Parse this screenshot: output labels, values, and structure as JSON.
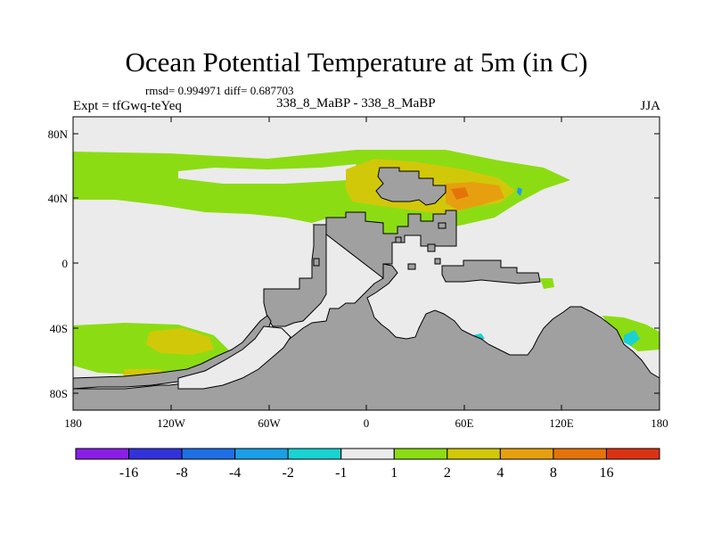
{
  "title": "Ocean Potential Temperature at 5m (in C)",
  "stats": "rmsd= 0.994971 diff= 0.687703",
  "experiment": "Expt = tfGwq-teYeq",
  "period_label": "338_8_MaBP - 338_8_MaBP",
  "season": "JJA",
  "y_ticks": [
    "80N",
    "40N",
    "0",
    "40S",
    "80S"
  ],
  "x_ticks": [
    "180",
    "120W",
    "60W",
    "0",
    "60E",
    "120E",
    "180"
  ],
  "colorbar": {
    "labels": [
      "-16",
      "-8",
      "-4",
      "-2",
      "-1",
      "1",
      "2",
      "4",
      "8",
      "16"
    ],
    "colors": [
      "#8a1ee6",
      "#3232dc",
      "#1e6ee6",
      "#19a0e6",
      "#19d2d2",
      "#ebebeb",
      "#8cdc14",
      "#d2c80a",
      "#e6a00f",
      "#e6730a",
      "#dc3214"
    ]
  },
  "colors": {
    "land": "#a0a0a0",
    "ocean_neutral": "#ebebeb",
    "frame": "#000000"
  }
}
